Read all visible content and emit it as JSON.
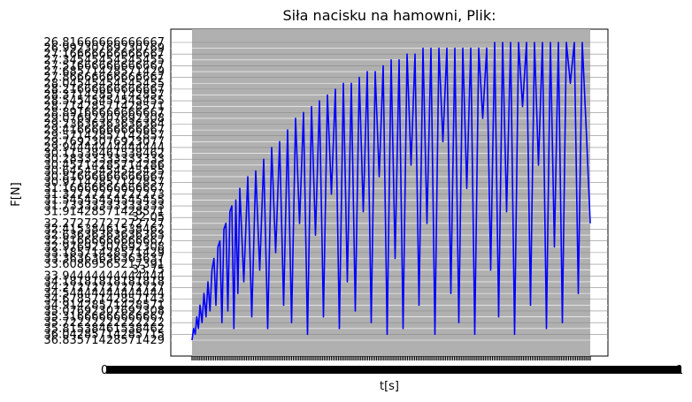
{
  "chart_data": {
    "type": "line",
    "title": "Siła nacisku na hamowni, Plik:",
    "xlabel": "t[s]",
    "ylabel": "F[N]",
    "grid": true,
    "colors": {
      "line": "#0000ff",
      "plot_background": "#b0b0b0",
      "grid": "#ffffff",
      "axes_background": "#ffffff"
    },
    "y_tick_labels": [
      "36.83571428571429",
      "36.04285714285715",
      "35.81538461538462",
      "35.72222222222222",
      "35.31666666666667",
      "35.07692307692308",
      "34.91428571428571",
      "34.67857142857143",
      "34.54444444444444",
      "34.27272727272727",
      "34.18181818181818",
      "33.94444444444444",
      "33.75",
      "33.60869565217391",
      "33.36363636363637",
      "33.18571428571429",
      "32.97692307692308",
      "32.81666666666667",
      "32.63636363636363",
      "32.41538461538462",
      "32.27272727272727",
      "32.05",
      "31.91428571428571",
      "31.73333333333333",
      "31.54545454545455",
      "31.32727272727273",
      "31.16666666666667",
      "30.97142857142857",
      "30.81666666666667",
      "30.64545454545455",
      "30.45714285714286",
      "30.28333333333333",
      "30.11538461538462",
      "29.94444444444444",
      "29.76923076923077",
      "29.57142857142857",
      "29.41666666666667",
      "29.23636363636364",
      "29.07692307692308",
      "28.89166666666667",
      "28.71428571428571",
      "28.54545454545455",
      "28.37142857142857",
      "28.21666666666667",
      "28.04545454545455",
      "27.86666666666667",
      "27.68571428571429",
      "27.51666666666667",
      "27.34545454545455",
      "27.16666666666667",
      "26.99230769230769",
      "26.81666666666667"
    ],
    "x_tick_labels": [
      "0",
      "1"
    ],
    "x": [
      0,
      0.004,
      0.008,
      0.012,
      0.016,
      0.02,
      0.025,
      0.03,
      0.035,
      0.04,
      0.045,
      0.05,
      0.055,
      0.06,
      0.065,
      0.07,
      0.075,
      0.08,
      0.085,
      0.09,
      0.095,
      0.1,
      0.105,
      0.11,
      0.115,
      0.12,
      0.13,
      0.14,
      0.15,
      0.16,
      0.17,
      0.18,
      0.19,
      0.2,
      0.21,
      0.22,
      0.23,
      0.24,
      0.25,
      0.26,
      0.27,
      0.28,
      0.29,
      0.3,
      0.31,
      0.32,
      0.33,
      0.34,
      0.35,
      0.36,
      0.37,
      0.38,
      0.39,
      0.4,
      0.41,
      0.42,
      0.43,
      0.44,
      0.45,
      0.46,
      0.47,
      0.48,
      0.49,
      0.5,
      0.51,
      0.52,
      0.53,
      0.54,
      0.55,
      0.56,
      0.57,
      0.58,
      0.59,
      0.6,
      0.61,
      0.62,
      0.63,
      0.64,
      0.65,
      0.66,
      0.67,
      0.68,
      0.69,
      0.7,
      0.71,
      0.72,
      0.73,
      0.74,
      0.75,
      0.76,
      0.77,
      0.78,
      0.79,
      0.8,
      0.81,
      0.82,
      0.83,
      0.84,
      0.85,
      0.86,
      0.87,
      0.88,
      0.89,
      0.9,
      0.91,
      0.92,
      0.93,
      0.94,
      0.95,
      0.96,
      0.97,
      0.98,
      0.99,
      1.0
    ],
    "y_index": [
      0,
      2,
      1,
      4,
      2,
      6,
      3,
      8,
      4,
      10,
      5,
      12,
      14,
      6,
      16,
      17,
      3,
      19,
      20,
      5,
      22,
      23,
      2,
      24,
      8,
      26,
      10,
      28,
      4,
      29,
      12,
      31,
      2,
      33,
      15,
      34,
      6,
      36,
      3,
      38,
      20,
      39,
      1,
      40,
      18,
      41,
      4,
      42,
      25,
      43,
      2,
      44,
      10,
      44,
      5,
      45,
      22,
      46,
      3,
      46,
      28,
      47,
      1,
      48,
      14,
      48,
      2,
      49,
      30,
      49,
      6,
      50,
      20,
      50,
      1,
      50,
      34,
      50,
      8,
      50,
      3,
      50,
      26,
      50,
      1,
      50,
      38,
      50,
      12,
      51,
      4,
      51,
      22,
      51,
      1,
      51,
      40,
      51,
      6,
      51,
      30,
      51,
      2,
      51,
      16,
      51,
      3,
      51,
      44,
      51,
      8,
      51,
      36,
      20
    ]
  }
}
